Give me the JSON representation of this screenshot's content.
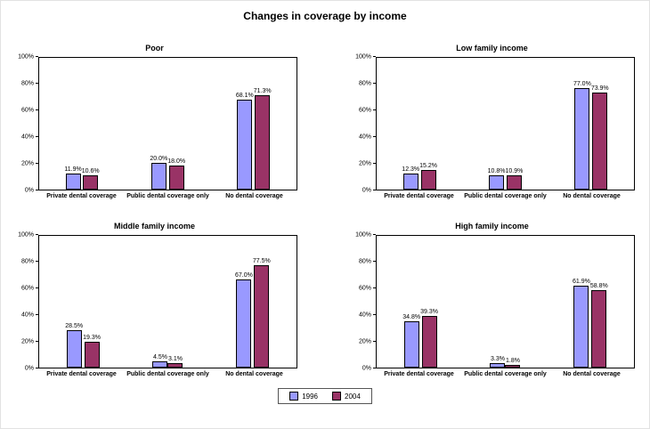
{
  "title": "Changes in coverage by income",
  "legend": {
    "entries": [
      {
        "label": "1996",
        "color": "#9999ff"
      },
      {
        "label": "2004",
        "color": "#993366"
      }
    ]
  },
  "chart_data": [
    {
      "type": "bar",
      "title": "Poor",
      "categories": [
        "Private dental coverage",
        "Public dental coverage only",
        "No dental coverage"
      ],
      "series": [
        {
          "name": "1996",
          "color": "#9999ff",
          "values": [
            11.9,
            20.0,
            68.1
          ]
        },
        {
          "name": "2004",
          "color": "#993366",
          "values": [
            10.6,
            18.0,
            71.3
          ]
        }
      ],
      "ylim": [
        0,
        100
      ],
      "yticks": [
        "0%",
        "20%",
        "40%",
        "60%",
        "80%",
        "100%"
      ],
      "grid": false,
      "legend_position": "bottom-shared"
    },
    {
      "type": "bar",
      "title": "Low family income",
      "categories": [
        "Private dental coverage",
        "Public dental coverage only",
        "No dental coverage"
      ],
      "series": [
        {
          "name": "1996",
          "color": "#9999ff",
          "values": [
            12.3,
            10.8,
            77.0
          ]
        },
        {
          "name": "2004",
          "color": "#993366",
          "values": [
            15.2,
            10.9,
            73.9
          ]
        }
      ],
      "ylim": [
        0,
        100
      ],
      "yticks": [
        "0%",
        "20%",
        "40%",
        "60%",
        "80%",
        "100%"
      ],
      "grid": false,
      "legend_position": "bottom-shared"
    },
    {
      "type": "bar",
      "title": "Middle family income",
      "categories": [
        "Private dental coverage",
        "Public dental coverage only",
        "No dental coverage"
      ],
      "series": [
        {
          "name": "1996",
          "color": "#9999ff",
          "values": [
            28.5,
            4.5,
            67.0
          ]
        },
        {
          "name": "2004",
          "color": "#993366",
          "values": [
            19.3,
            3.1,
            77.5
          ]
        }
      ],
      "ylim": [
        0,
        100
      ],
      "yticks": [
        "0%",
        "20%",
        "40%",
        "60%",
        "80%",
        "100%"
      ],
      "grid": false,
      "legend_position": "bottom-shared"
    },
    {
      "type": "bar",
      "title": "High family income",
      "categories": [
        "Private dental coverage",
        "Public dental coverage only",
        "No dental coverage"
      ],
      "series": [
        {
          "name": "1996",
          "color": "#9999ff",
          "values": [
            34.8,
            3.3,
            61.9
          ]
        },
        {
          "name": "2004",
          "color": "#993366",
          "values": [
            39.3,
            1.8,
            58.8
          ]
        }
      ],
      "ylim": [
        0,
        100
      ],
      "yticks": [
        "0%",
        "20%",
        "40%",
        "60%",
        "80%",
        "100%"
      ],
      "grid": false,
      "legend_position": "bottom-shared"
    }
  ]
}
